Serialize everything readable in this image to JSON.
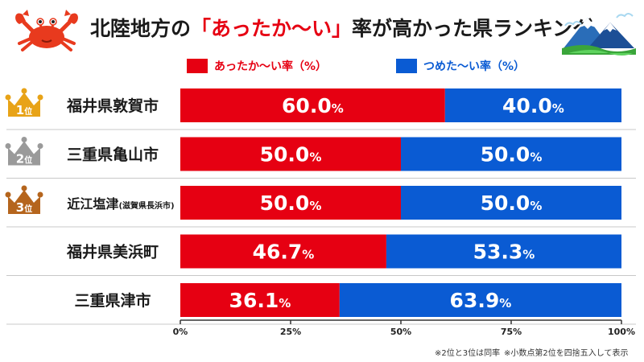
{
  "title": {
    "before": "北陸地方の",
    "highlight": "「あったか〜い」",
    "after": "率が高かった県ランキング"
  },
  "colors": {
    "warm": "#e60012",
    "cold": "#0a5bd3",
    "gold": "#e8a317",
    "silver": "#9a9a9a",
    "bronze": "#b5651d"
  },
  "icons": [
    "crab-icon",
    "mountain-icon"
  ],
  "footnotes": [
    "※2位と3位は同率",
    "※小数点第2位を四捨五入して表示"
  ],
  "chart_data": {
    "type": "bar",
    "orientation": "horizontal",
    "stacked": true,
    "categories": [
      "福井県敦賀市",
      "三重県亀山市",
      "近江塩津",
      "福井県美浜町",
      "三重県津市"
    ],
    "category_notes": [
      "",
      "",
      "(滋賀県長浜市)",
      "",
      ""
    ],
    "ranks": [
      "1",
      "2",
      "3",
      "",
      ""
    ],
    "rank_suffix": "位",
    "series": [
      {
        "name": "あったか〜い率（%）",
        "values": [
          60.0,
          50.0,
          50.0,
          46.7,
          36.1
        ]
      },
      {
        "name": "つめた〜い率（%）",
        "values": [
          40.0,
          50.0,
          50.0,
          53.3,
          63.9
        ]
      }
    ],
    "value_suffix": "%",
    "xlim": [
      0,
      100
    ],
    "xticks": [
      "0%",
      "25%",
      "50%",
      "75%",
      "100%"
    ],
    "legend_position": "top",
    "grid": false
  }
}
